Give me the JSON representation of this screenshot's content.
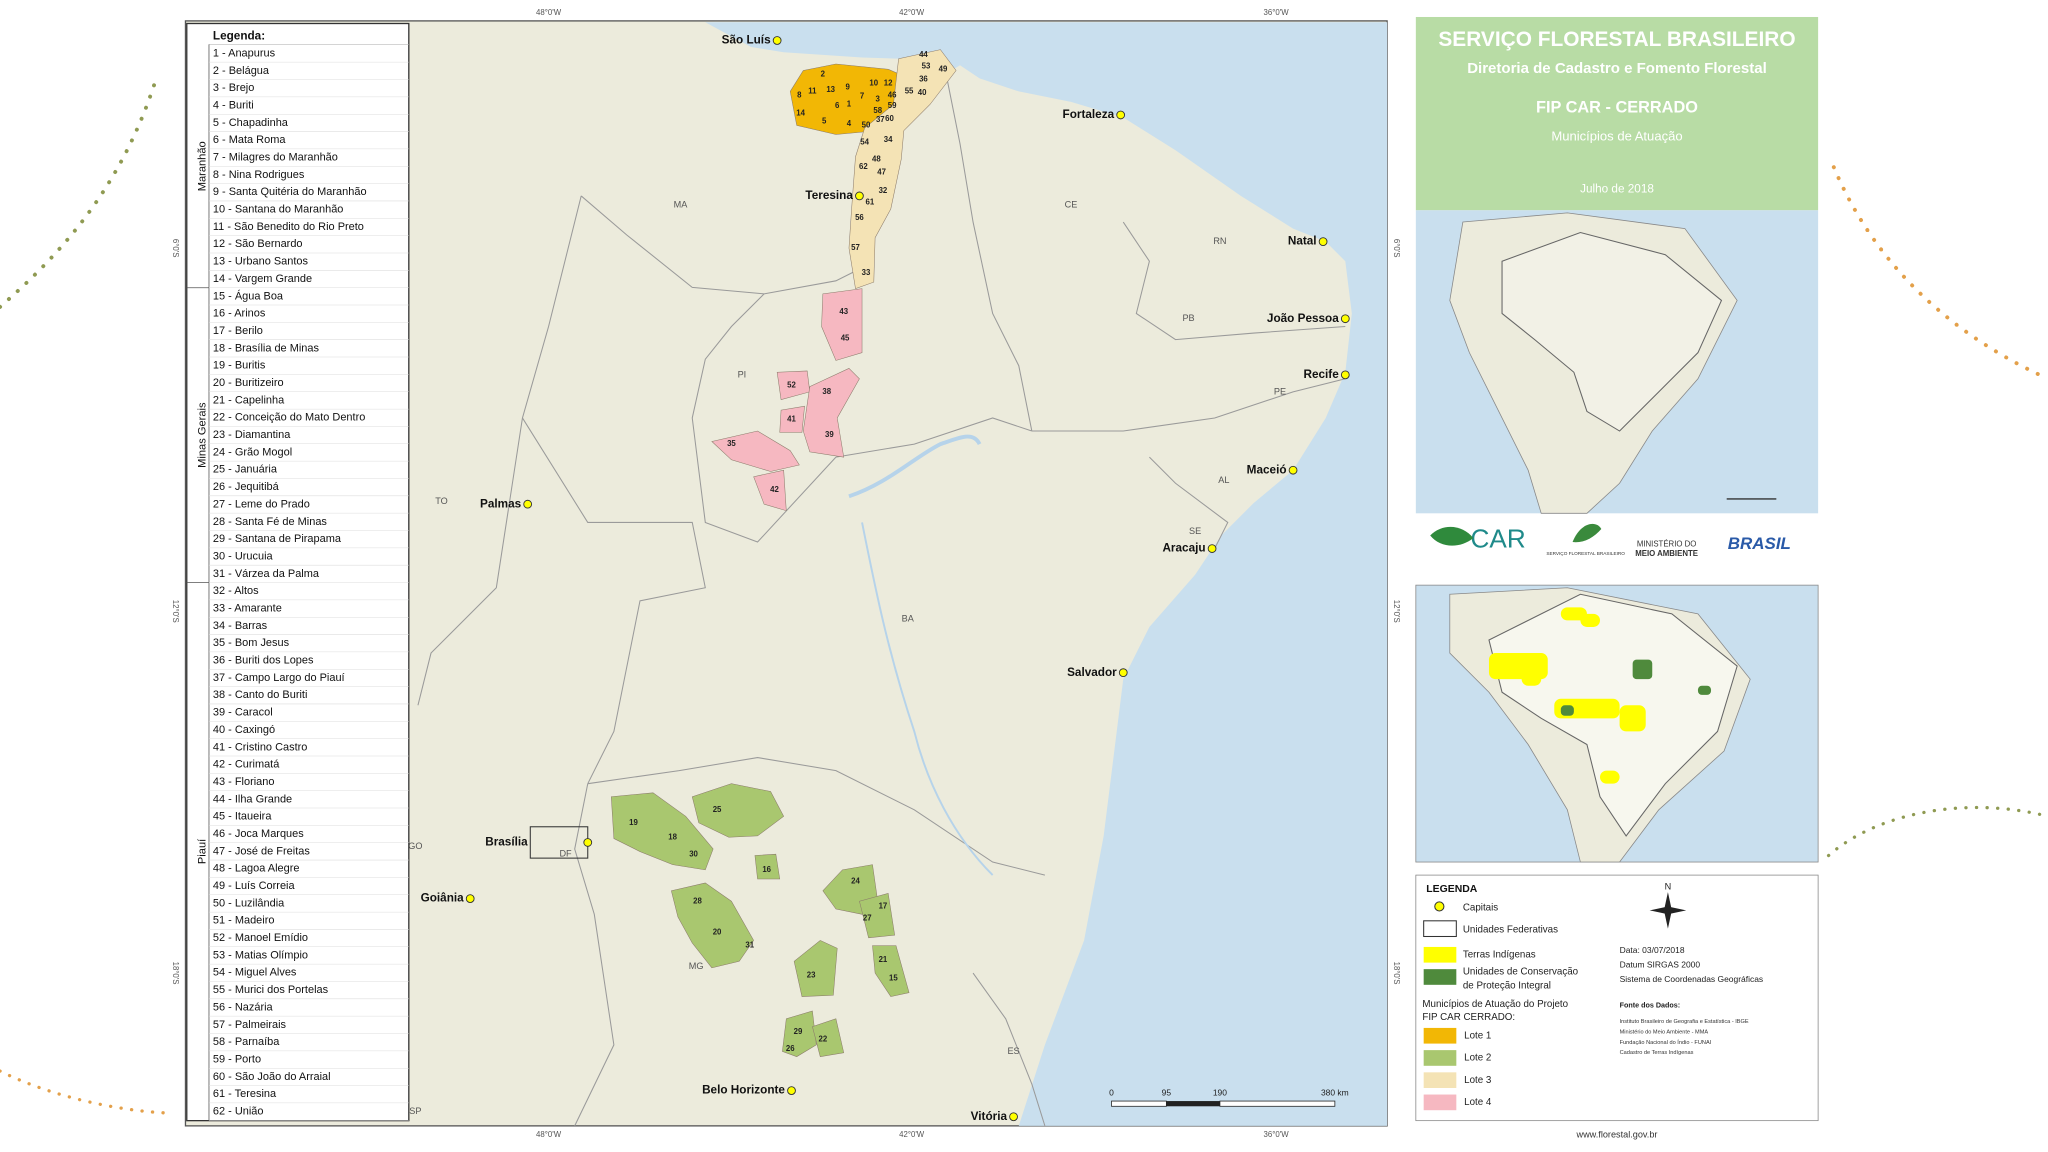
{
  "map": {
    "coords": {
      "lon": [
        "48°0'W",
        "42°0'W",
        "36°0'W"
      ],
      "lat": [
        "6°0'S",
        "12°0'S",
        "18°0'S"
      ]
    },
    "legend": {
      "title": "Legenda:",
      "groups": [
        "Maranhão",
        "Minas Gerais",
        "Piauí"
      ],
      "items": [
        "1 - Anapurus",
        "2 - Belágua",
        "3 - Brejo",
        "4 - Buriti",
        "5 - Chapadinha",
        "6 - Mata Roma",
        "7 - Milagres do Maranhão",
        "8 - Nina Rodrigues",
        "9 - Santa Quitéria do Maranhão",
        "10 - Santana do Maranhão",
        "11 - São Benedito do Rio Preto",
        "12 - São Bernardo",
        "13 - Urbano Santos",
        "14 - Vargem Grande",
        "15 - Água Boa",
        "16 - Arinos",
        "17 - Berilo",
        "18 - Brasília de Minas",
        "19 - Buritis",
        "20 - Buritizeiro",
        "21 - Capelinha",
        "22 - Conceição do Mato Dentro",
        "23 - Diamantina",
        "24 - Grão Mogol",
        "25 - Januária",
        "26 - Jequitibá",
        "27 - Leme do Prado",
        "28 - Santa Fé de Minas",
        "29 - Santana de Pirapama",
        "30 - Urucuia",
        "31 - Várzea da Palma",
        "32 - Altos",
        "33 - Amarante",
        "34 - Barras",
        "35 - Bom Jesus",
        "36 - Buriti dos Lopes",
        "37 - Campo Largo do Piauí",
        "38 - Canto do Buriti",
        "39 - Caracol",
        "40 - Caxingó",
        "41 - Cristino Castro",
        "42 - Curimatá",
        "43 - Floriano",
        "44 - Ilha Grande",
        "45 - Itaueira",
        "46 - Joca Marques",
        "47 - José de Freitas",
        "48 - Lagoa Alegre",
        "49 - Luís Correia",
        "50 - Luzilândia",
        "51 - Madeiro",
        "52 - Manoel Emídio",
        "53 - Matias Olímpio",
        "54 - Miguel Alves",
        "55 - Murici dos Portelas",
        "56 - Nazária",
        "57 - Palmeirais",
        "58 - Parnaíba",
        "59 - Porto",
        "60 - São João do Arraial",
        "61 - Teresina",
        "62 - União"
      ]
    },
    "capitals": [
      "São Luís",
      "Fortaleza",
      "Teresina",
      "Natal",
      "João Pessoa",
      "Recife",
      "Maceió",
      "Aracaju",
      "Palmas",
      "Salvador",
      "Brasília",
      "Goiânia",
      "Belo Horizonte",
      "Vitória"
    ],
    "states": [
      "MA",
      "CE",
      "RN",
      "PB",
      "PE",
      "AL",
      "SE",
      "PI",
      "TO",
      "BA",
      "GO",
      "DF",
      "MG",
      "ES",
      "SP"
    ],
    "lots": [
      {
        "name": "Lote 1",
        "color": "#f2b705",
        "areas": [
          "2",
          "8",
          "11",
          "13",
          "9",
          "10",
          "12",
          "14",
          "6",
          "1",
          "7",
          "3",
          "5",
          "4"
        ]
      },
      {
        "name": "Lote 2",
        "color": "#a9c76f",
        "areas": [
          "19",
          "18",
          "30",
          "25",
          "16",
          "28",
          "20",
          "31",
          "24",
          "17",
          "27",
          "23",
          "21",
          "15",
          "29",
          "26",
          "22"
        ]
      },
      {
        "name": "Lote 3",
        "color": "#f4e3b5",
        "areas": [
          "44",
          "53",
          "49",
          "36",
          "55",
          "40",
          "46",
          "59",
          "58",
          "37",
          "60",
          "50",
          "34",
          "54",
          "48",
          "62",
          "47",
          "32",
          "61",
          "56",
          "57",
          "33"
        ]
      },
      {
        "name": "Lote 4",
        "color": "#f6b8c1",
        "areas": [
          "43",
          "45",
          "52",
          "38",
          "41",
          "39",
          "35",
          "42"
        ]
      }
    ],
    "scale": [
      "0",
      "95",
      "190",
      "380 km"
    ],
    "north": "N"
  },
  "panel": {
    "header": {
      "title": "SERVIÇO FLORESTAL BRASILEIRO",
      "subtitle": "Diretoria de Cadastro e Fomento Florestal",
      "project": "FIP CAR - CERRADO",
      "caption": "Municípios de Atuação",
      "date": "Julho de 2018"
    },
    "logos": {
      "car": "CAR",
      "sfb": "SERVIÇO FLORESTAL BRASILEIRO",
      "mma": [
        "MINISTÉRIO DO",
        "MEIO AMBIENTE"
      ],
      "brasil": "BRASIL"
    },
    "legend": {
      "title": "LEGENDA",
      "capitals": "Capitais",
      "states": "Unidades Federativas",
      "indigenous": "Terras Indígenas",
      "conservation": [
        "Unidades de Conservação",
        "de Proteção Integral"
      ],
      "lots_title": [
        "Municípios de Atuação do Projeto",
        "FIP CAR CERRADO:"
      ],
      "indigenous_color": "#ffff00",
      "conservation_color": "#4f8a3c"
    },
    "info": [
      "Data: 03/07/2018",
      "Datum SIRGAS 2000",
      "Sistema de Coordenadas Geográficas"
    ],
    "sources_title": "Fonte dos Dados:",
    "sources": [
      "Instituto Brasileiro de Geografia e Estatística - IBGE",
      "Ministério do Meio Ambiente - MMA",
      "Fundação Nacional do Índio - FUNAI",
      "Cadastro de Terras Indígenas"
    ],
    "footer": "www.florestal.gov.br"
  }
}
